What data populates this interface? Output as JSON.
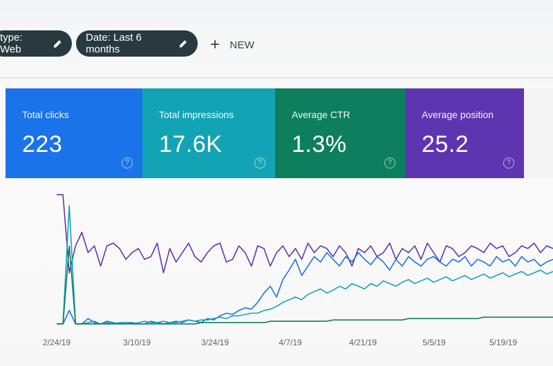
{
  "filters": {
    "type_chip": "type: Web",
    "date_chip": "Date: Last 6 months",
    "new_label": "NEW"
  },
  "metrics": [
    {
      "label": "Total clicks",
      "value": "223",
      "color": "#1a73e8"
    },
    {
      "label": "Total impressions",
      "value": "17.6K",
      "color": "#12a4b5"
    },
    {
      "label": "Average CTR",
      "value": "1.3%",
      "color": "#0d7f5e"
    },
    {
      "label": "Average position",
      "value": "25.2",
      "color": "#5e35b1"
    }
  ],
  "help_glyph": "?",
  "chart_data": {
    "type": "line",
    "x_tick_labels": [
      "2/24/19",
      "3/10/19",
      "3/24/19",
      "4/7/19",
      "4/21/19",
      "5/5/19",
      "5/19/19"
    ],
    "series": [
      {
        "color": "#5e35b1",
        "values": [
          98,
          98,
          40,
          60,
          70,
          55,
          60,
          45,
          60,
          62,
          58,
          50,
          55,
          58,
          50,
          52,
          62,
          40,
          58,
          48,
          55,
          62,
          52,
          48,
          55,
          60,
          62,
          48,
          50,
          60,
          55,
          45,
          60,
          58,
          45,
          55,
          60,
          52,
          58,
          50,
          62,
          55,
          60,
          58,
          52,
          60,
          55,
          45,
          58,
          55,
          60,
          52,
          55,
          62,
          50,
          58,
          55,
          60,
          50,
          62,
          55,
          48,
          60,
          58,
          52,
          55,
          60,
          58,
          55,
          62,
          58,
          60,
          52,
          55,
          60,
          58,
          62,
          55,
          60,
          58
        ]
      },
      {
        "color": "#1a73e8",
        "values": [
          2,
          2,
          12,
          2,
          2,
          6,
          3,
          2,
          4,
          3,
          2,
          3,
          3,
          2,
          2,
          4,
          3,
          2,
          3,
          4,
          3,
          5,
          4,
          3,
          6,
          5,
          8,
          10,
          9,
          12,
          14,
          13,
          18,
          25,
          30,
          22,
          35,
          42,
          50,
          38,
          45,
          52,
          48,
          55,
          50,
          45,
          52,
          48,
          55,
          50,
          46,
          52,
          48,
          42,
          50,
          45,
          52,
          48,
          45,
          50,
          52,
          48,
          45,
          50,
          48,
          52,
          45,
          50,
          48,
          45,
          52,
          48,
          50,
          45,
          52,
          48,
          50,
          45,
          48,
          50
        ]
      },
      {
        "color": "#12a4b5",
        "values": [
          2,
          2,
          90,
          2,
          2,
          3,
          4,
          2,
          3,
          2,
          3,
          3,
          2,
          3,
          4,
          3,
          3,
          4,
          3,
          3,
          4,
          5,
          4,
          5,
          5,
          6,
          7,
          6,
          8,
          8,
          9,
          10,
          10,
          12,
          13,
          15,
          18,
          20,
          22,
          20,
          24,
          26,
          28,
          25,
          27,
          30,
          28,
          32,
          30,
          28,
          32,
          30,
          34,
          32,
          30,
          33,
          35,
          32,
          34,
          36,
          33,
          35,
          37,
          34,
          36,
          38,
          35,
          37,
          39,
          36,
          38,
          40,
          37,
          39,
          41,
          38,
          40,
          42,
          39,
          41
        ]
      },
      {
        "color": "#0d7f5e",
        "values": [
          2,
          2,
          60,
          2,
          2,
          2,
          2,
          2,
          2,
          2,
          2,
          2,
          2,
          2,
          2,
          2,
          2,
          2,
          2,
          2,
          2,
          2,
          2,
          3,
          3,
          3,
          3,
          3,
          3,
          3,
          3,
          3,
          3,
          3,
          4,
          4,
          4,
          4,
          4,
          4,
          4,
          4,
          4,
          4,
          5,
          5,
          5,
          5,
          5,
          5,
          5,
          5,
          5,
          5,
          5,
          5,
          6,
          6,
          6,
          6,
          6,
          6,
          6,
          6,
          6,
          6,
          6,
          6,
          7,
          7,
          7,
          7,
          7,
          7,
          7,
          7,
          7,
          7,
          7,
          7
        ]
      }
    ],
    "grid": false,
    "legend": "none"
  }
}
